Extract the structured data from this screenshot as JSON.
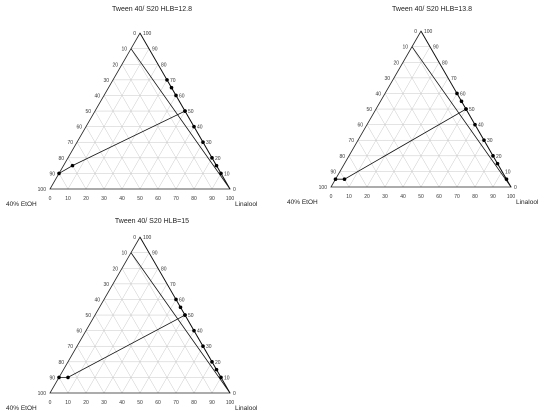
{
  "chart_data": [
    {
      "type": "ternary",
      "title": "Tween 40/ S20 HLB=12.8",
      "apex_label": "",
      "left_label": "40% EtOH",
      "right_label": "Linalool",
      "ticks": [
        0,
        10,
        20,
        30,
        40,
        50,
        60,
        70,
        80,
        90,
        100
      ],
      "grid": true,
      "dilution_lines": [
        [
          100,
          0
        ],
        [
          90,
          0
        ]
      ],
      "phase_boundary": [
        {
          "s": 10,
          "o": 0
        },
        {
          "s": 15,
          "o": 5
        },
        {
          "s": 50,
          "o": 50
        },
        {
          "s": 70,
          "o": 30
        },
        {
          "s": 65,
          "o": 35
        },
        {
          "s": 60,
          "o": 40
        },
        {
          "s": 50,
          "o": 50
        },
        {
          "s": 40,
          "o": 60
        },
        {
          "s": 30,
          "o": 70
        },
        {
          "s": 20,
          "o": 80
        },
        {
          "s": 15,
          "o": 85
        },
        {
          "s": 10,
          "o": 90
        }
      ]
    },
    {
      "type": "ternary",
      "title": "Tween 40/ S20 HLB=13.8",
      "apex_label": "",
      "left_label": "40% EtOH",
      "right_label": "Linalool",
      "ticks": [
        0,
        10,
        20,
        30,
        40,
        50,
        60,
        70,
        80,
        90,
        100
      ],
      "grid": true,
      "dilution_lines": [
        [
          100,
          0
        ],
        [
          90,
          0
        ]
      ],
      "phase_boundary": [
        {
          "s": 5,
          "o": 0
        },
        {
          "s": 5,
          "o": 5
        },
        {
          "s": 50,
          "o": 50
        },
        {
          "s": 60,
          "o": 40
        },
        {
          "s": 55,
          "o": 45
        },
        {
          "s": 50,
          "o": 50
        },
        {
          "s": 40,
          "o": 60
        },
        {
          "s": 30,
          "o": 70
        },
        {
          "s": 20,
          "o": 80
        },
        {
          "s": 15,
          "o": 85
        },
        {
          "s": 5,
          "o": 95
        }
      ]
    },
    {
      "type": "ternary",
      "title": "Tween 40/ S20 HLB=15",
      "apex_label": "",
      "left_label": "40% EtOH",
      "right_label": "Linalool",
      "ticks": [
        0,
        10,
        20,
        30,
        40,
        50,
        60,
        70,
        80,
        90,
        100
      ],
      "grid": true,
      "dilution_lines": [
        [
          100,
          0
        ],
        [
          90,
          0
        ]
      ],
      "phase_boundary": [
        {
          "s": 10,
          "o": 0
        },
        {
          "s": 10,
          "o": 5
        },
        {
          "s": 50,
          "o": 50
        },
        {
          "s": 60,
          "o": 40
        },
        {
          "s": 55,
          "o": 45
        },
        {
          "s": 50,
          "o": 50
        },
        {
          "s": 40,
          "o": 60
        },
        {
          "s": 30,
          "o": 70
        },
        {
          "s": 20,
          "o": 80
        },
        {
          "s": 15,
          "o": 85
        },
        {
          "s": 10,
          "o": 90
        }
      ]
    }
  ],
  "colors": {
    "line": "#111111",
    "grid": "#c8c8c8",
    "marker": "#000000"
  }
}
